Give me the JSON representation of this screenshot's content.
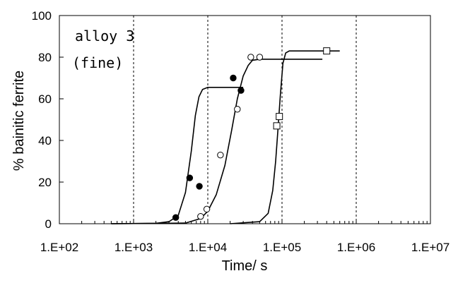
{
  "chart_data": {
    "type": "scatter",
    "xlabel": "Time/ s",
    "ylabel": "% bainitic ferrite",
    "xscale": "log",
    "xlim": [
      100,
      10000000
    ],
    "ylim": [
      0,
      100
    ],
    "grid": "vertical dashed at decades",
    "x_ticks": [
      100,
      1000,
      10000,
      100000,
      1000000,
      10000000
    ],
    "x_tick_labels": [
      "1.E+02",
      "1.E+03",
      "1.E+04",
      "1.E+05",
      "1.E+06",
      "1.E+07"
    ],
    "y_ticks": [
      0,
      20,
      40,
      60,
      80,
      100
    ],
    "y_tick_labels": [
      "0",
      "20",
      "40",
      "60",
      "80",
      "100"
    ],
    "annotations": [
      "alloy 3",
      "(fine)"
    ],
    "colors": {
      "axis": "#000000",
      "marker_fill_filled": "#000000",
      "marker_fill_open": "#ffffff",
      "line": "#000000"
    },
    "series": [
      {
        "marker": "filled-circle",
        "points": [
          [
            3700,
            3
          ],
          [
            5700,
            22
          ],
          [
            7700,
            18
          ],
          [
            22000,
            70
          ],
          [
            28000,
            64
          ]
        ],
        "curve": [
          [
            500,
            0
          ],
          [
            2000,
            0.2
          ],
          [
            3000,
            1
          ],
          [
            4000,
            4
          ],
          [
            5000,
            15
          ],
          [
            6000,
            35
          ],
          [
            6800,
            52
          ],
          [
            7600,
            61
          ],
          [
            8500,
            64.5
          ],
          [
            10000,
            65.5
          ],
          [
            30000,
            65.5
          ]
        ]
      },
      {
        "marker": "open-circle",
        "points": [
          [
            8000,
            3.5
          ],
          [
            9700,
            7
          ],
          [
            14800,
            33
          ],
          [
            25000,
            55
          ],
          [
            38000,
            80
          ],
          [
            50000,
            80
          ]
        ],
        "curve": [
          [
            500,
            0
          ],
          [
            5000,
            0.3
          ],
          [
            8000,
            2.5
          ],
          [
            10000,
            6
          ],
          [
            13000,
            14
          ],
          [
            17000,
            28
          ],
          [
            21000,
            45
          ],
          [
            25000,
            60
          ],
          [
            30000,
            71
          ],
          [
            35000,
            76
          ],
          [
            40000,
            78.5
          ],
          [
            50000,
            79
          ],
          [
            350000,
            79
          ]
        ]
      },
      {
        "marker": "open-square",
        "points": [
          [
            85000,
            47
          ],
          [
            92000,
            51.5
          ],
          [
            400000,
            83
          ]
        ],
        "curve": [
          [
            20000,
            0
          ],
          [
            50000,
            1
          ],
          [
            65000,
            5
          ],
          [
            75000,
            16
          ],
          [
            82000,
            30
          ],
          [
            88000,
            45
          ],
          [
            95000,
            62
          ],
          [
            103000,
            77
          ],
          [
            112000,
            82
          ],
          [
            125000,
            83
          ],
          [
            600000,
            83
          ]
        ]
      }
    ]
  }
}
